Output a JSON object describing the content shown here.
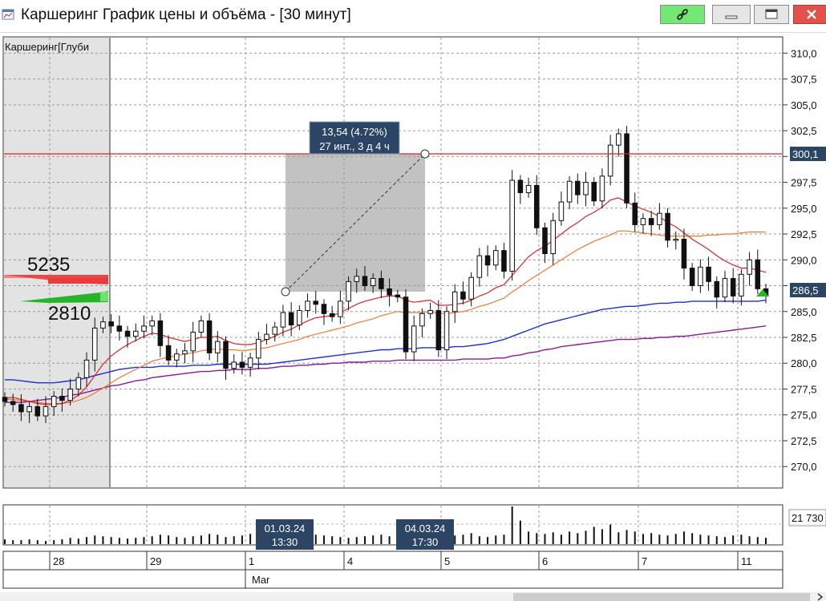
{
  "window": {
    "title": "Каршеринг График цены и объёма - [30 минут]",
    "buttons": {
      "link": "link-icon",
      "minimize": "minimize-icon",
      "maximize": "maximize-icon",
      "close": "close-icon"
    }
  },
  "chart_data": {
    "type": "candlestick",
    "legend_label": "Каршеринг[Глуби",
    "depth_values": [
      "5235",
      "2810"
    ],
    "y_ticks": [
      "310,0",
      "307,5",
      "305,0",
      "302,5",
      "300,0",
      "297,5",
      "295,0",
      "292,5",
      "290,0",
      "287,5",
      "285,0",
      "282,5",
      "280,0",
      "277,5",
      "275,0",
      "272,5",
      "270,0"
    ],
    "y_range": [
      268.0,
      311.5
    ],
    "current_price_label": "286,5",
    "horizontal_line_label": "300,1",
    "horizontal_line_price": 300.1,
    "measure_tooltip": {
      "line1": "13,54 (4.72%)",
      "line2": "27 инт., 3 д 4 ч"
    },
    "volume_label": "21 730",
    "cursor_labels": [
      {
        "date": "01.03.24",
        "time": "13:30"
      },
      {
        "date": "04.03.24",
        "time": "17:30"
      }
    ],
    "x_day_labels": [
      "28",
      "29",
      "1",
      "4",
      "5",
      "6",
      "7",
      "11"
    ],
    "month_label": "Mar",
    "close_series": [
      276.3,
      276.0,
      275.3,
      275.8,
      274.9,
      275.8,
      276.8,
      276.4,
      277.5,
      278.6,
      280.3,
      283.4,
      284.0,
      283.6,
      283.1,
      282.6,
      283.1,
      283.6,
      284.1,
      281.7,
      280.3,
      280.9,
      281.2,
      283.0,
      284.1,
      281.0,
      282.1,
      279.5,
      280.1,
      279.6,
      280.5,
      282.3,
      282.8,
      283.5,
      284.9,
      283.7,
      285.1,
      286.0,
      285.7,
      284.8,
      284.5,
      286.0,
      287.9,
      288.4,
      287.5,
      288.2,
      287.2,
      286.6,
      286.4,
      281.1,
      283.6,
      284.8,
      285.1,
      281.3,
      285.0,
      286.9,
      286.2,
      288.3,
      290.4,
      289.5,
      290.9,
      288.9,
      297.7,
      296.5,
      297.2,
      293.1,
      290.6,
      293.8,
      295.6,
      297.6,
      296.3,
      297.5,
      295.7,
      298.1,
      301.1,
      302.2,
      295.5,
      293.4,
      294.0,
      293.4,
      294.5,
      291.9,
      292.0,
      289.2,
      287.5,
      289.3,
      287.9,
      286.4,
      288.2,
      286.5,
      288.6,
      290.0,
      287.2,
      286.5
    ],
    "volume_series": [
      6,
      5,
      5,
      6,
      5,
      4,
      5,
      6,
      8,
      7,
      9,
      11,
      10,
      9,
      8,
      7,
      8,
      9,
      10,
      12,
      11,
      9,
      8,
      10,
      11,
      13,
      12,
      9,
      10,
      11,
      13,
      12,
      11,
      9,
      10,
      14,
      15,
      16,
      12,
      11,
      10,
      9,
      8,
      9,
      10,
      11,
      12,
      10,
      14,
      18,
      13,
      11,
      10,
      12,
      13,
      11,
      12,
      14,
      10,
      9,
      11,
      12,
      48,
      30,
      16,
      14,
      13,
      15,
      12,
      16,
      14,
      17,
      22,
      19,
      25,
      15,
      18,
      16,
      13,
      14,
      12,
      11,
      13,
      16,
      14,
      12,
      11,
      10,
      9,
      11,
      12,
      10,
      9,
      8
    ],
    "ma_red_series": [
      276.6,
      276.7,
      276.5,
      276.3,
      276.1,
      276.0,
      276.0,
      276.1,
      276.4,
      276.9,
      277.7,
      278.8,
      279.9,
      280.7,
      281.3,
      281.8,
      282.2,
      282.6,
      282.9,
      282.8,
      282.5,
      282.3,
      282.1,
      282.3,
      282.5,
      282.5,
      282.6,
      282.2,
      281.9,
      281.8,
      281.8,
      282.0,
      282.3,
      282.6,
      283.0,
      283.3,
      283.7,
      284.1,
      284.4,
      284.5,
      284.6,
      284.9,
      285.3,
      285.7,
      286.0,
      286.2,
      286.4,
      286.5,
      286.5,
      286.1,
      285.9,
      286.0,
      286.1,
      285.6,
      285.6,
      285.7,
      285.8,
      286.1,
      286.5,
      286.8,
      287.3,
      287.6,
      288.5,
      289.4,
      290.3,
      290.9,
      291.3,
      291.9,
      292.5,
      293.1,
      293.6,
      294.2,
      294.6,
      295.1,
      295.8,
      296.0,
      295.6,
      295.2,
      294.9,
      294.6,
      294.2,
      293.6,
      293.2,
      292.6,
      292.0,
      291.5,
      291.0,
      290.4,
      289.9,
      289.5,
      289.2,
      289.2,
      289.0,
      288.8
    ],
    "ma_orange_series": [
      276.5,
      276.5,
      276.4,
      276.3,
      276.2,
      276.1,
      276.1,
      276.1,
      276.2,
      276.4,
      276.7,
      277.1,
      277.6,
      278.1,
      278.6,
      279.0,
      279.4,
      279.8,
      280.2,
      280.4,
      280.6,
      280.7,
      280.9,
      281.0,
      281.2,
      281.3,
      281.4,
      281.3,
      281.3,
      281.2,
      281.3,
      281.4,
      281.5,
      281.7,
      281.9,
      282.1,
      282.3,
      282.6,
      282.8,
      283.0,
      283.2,
      283.4,
      283.6,
      283.9,
      284.1,
      284.3,
      284.6,
      284.8,
      285.0,
      284.9,
      284.9,
      284.9,
      285.0,
      284.8,
      284.8,
      284.9,
      285.0,
      285.2,
      285.5,
      285.7,
      286.0,
      286.3,
      286.9,
      287.4,
      288.0,
      288.5,
      289.0,
      289.5,
      290.0,
      290.5,
      291.0,
      291.4,
      291.8,
      292.1,
      292.4,
      292.8,
      292.8,
      292.7,
      292.6,
      292.5,
      292.4,
      292.3,
      292.3,
      292.3,
      292.3,
      292.3,
      292.4,
      292.4,
      292.5,
      292.5,
      292.6,
      292.7,
      292.7,
      292.7
    ],
    "ma_blue_series": [
      278.4,
      278.4,
      278.3,
      278.2,
      278.1,
      278.1,
      278.1,
      278.2,
      278.3,
      278.4,
      278.6,
      278.8,
      279.0,
      279.2,
      279.4,
      279.5,
      279.6,
      279.6,
      279.6,
      279.7,
      279.7,
      279.7,
      279.7,
      279.8,
      279.8,
      279.8,
      279.9,
      279.9,
      279.9,
      279.9,
      279.9,
      279.9,
      279.9,
      280.0,
      280.1,
      280.2,
      280.3,
      280.4,
      280.5,
      280.6,
      280.7,
      280.8,
      280.9,
      281.0,
      281.1,
      281.2,
      281.3,
      281.3,
      281.4,
      281.4,
      281.4,
      281.5,
      281.5,
      281.5,
      281.5,
      281.6,
      281.6,
      281.7,
      281.8,
      281.9,
      282.1,
      282.3,
      282.6,
      282.9,
      283.2,
      283.5,
      283.8,
      284.0,
      284.2,
      284.4,
      284.6,
      284.8,
      285.0,
      285.2,
      285.3,
      285.4,
      285.5,
      285.5,
      285.6,
      285.7,
      285.8,
      285.8,
      285.9,
      285.9,
      286.0,
      286.0,
      286.0,
      286.0,
      286.0,
      286.0,
      286.0,
      286.0,
      286.0,
      286.1
    ],
    "ma_purple_series": [
      276.2,
      276.2,
      276.2,
      276.3,
      276.4,
      276.5,
      276.6,
      276.7,
      276.9,
      277.0,
      277.2,
      277.4,
      277.6,
      277.8,
      277.9,
      278.1,
      278.3,
      278.4,
      278.6,
      278.7,
      278.8,
      278.9,
      279.0,
      279.1,
      279.2,
      279.2,
      279.3,
      279.3,
      279.4,
      279.4,
      279.4,
      279.5,
      279.5,
      279.6,
      279.7,
      279.7,
      279.8,
      279.8,
      279.9,
      279.9,
      280.0,
      280.0,
      280.1,
      280.1,
      280.1,
      280.2,
      280.2,
      280.2,
      280.3,
      280.3,
      280.3,
      280.3,
      280.3,
      280.3,
      280.3,
      280.3,
      280.4,
      280.4,
      280.4,
      280.4,
      280.5,
      280.5,
      280.7,
      280.8,
      281.0,
      281.1,
      281.3,
      281.4,
      281.6,
      281.7,
      281.8,
      281.9,
      282.0,
      282.1,
      282.2,
      282.3,
      282.3,
      282.3,
      282.4,
      282.4,
      282.5,
      282.5,
      282.6,
      282.6,
      282.7,
      282.8,
      282.9,
      283.0,
      283.1,
      283.2,
      283.3,
      283.4,
      283.5,
      283.6
    ]
  }
}
